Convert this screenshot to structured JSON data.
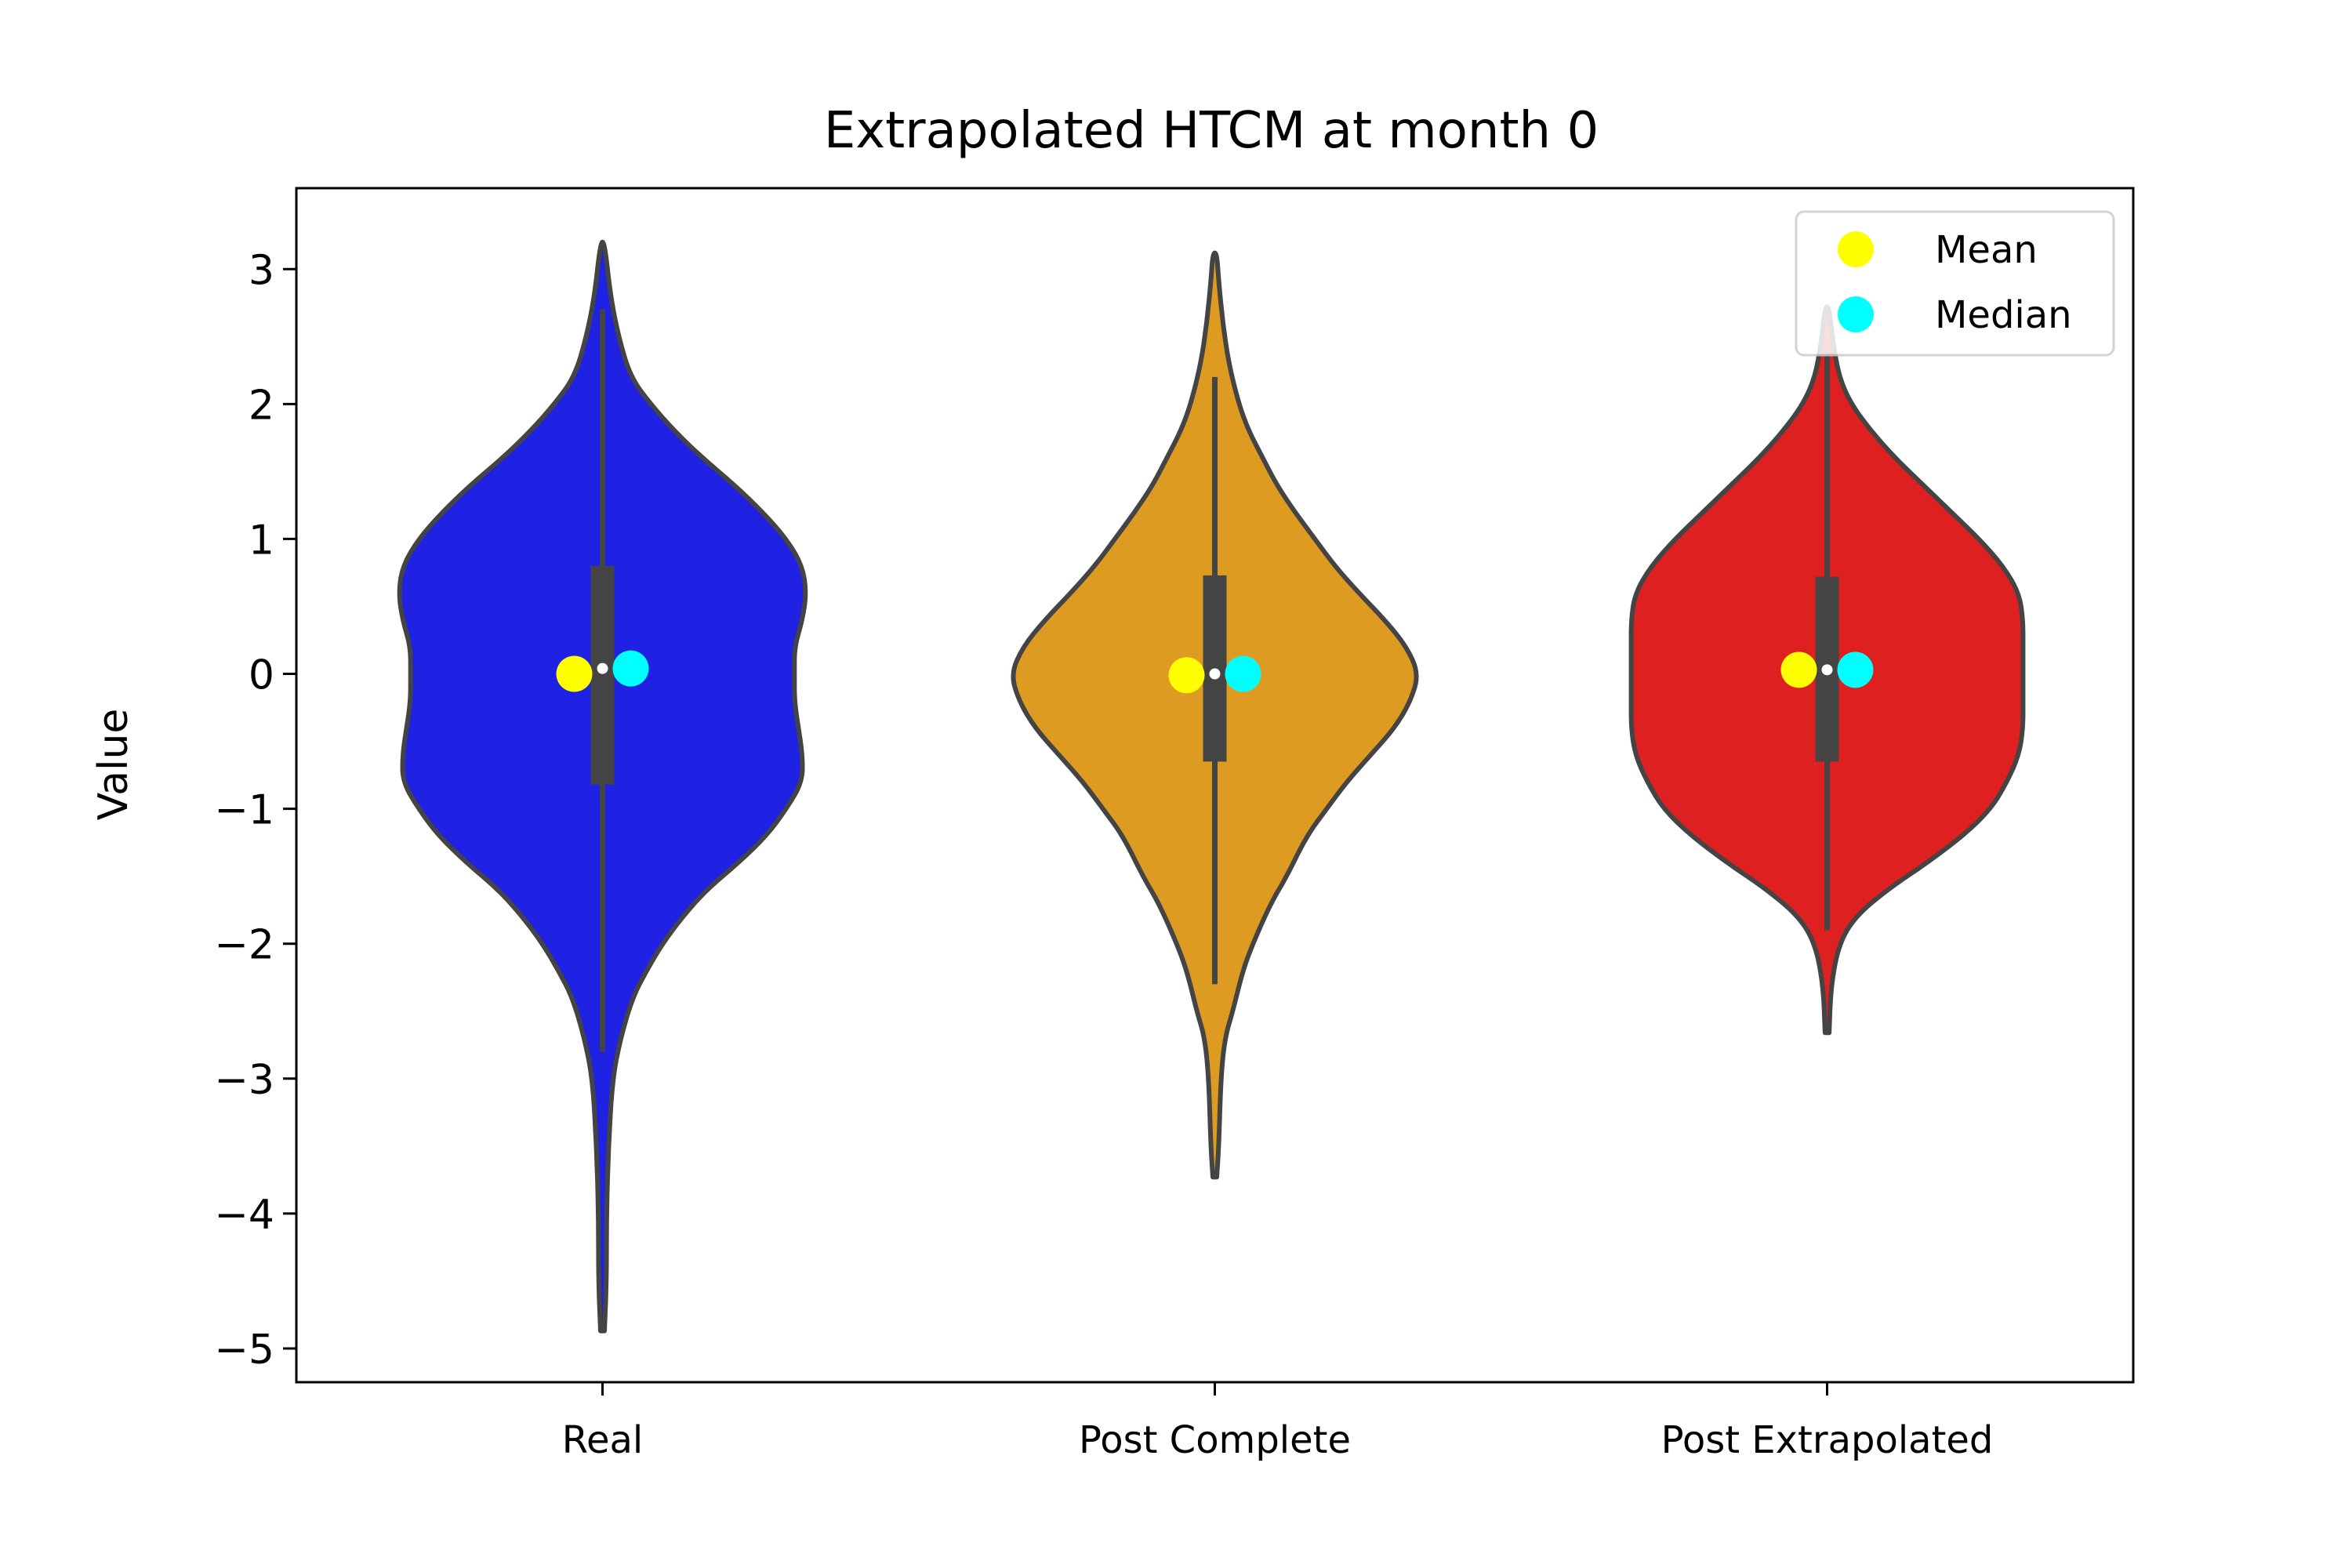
{
  "chart_data": {
    "type": "violin",
    "title": "Extrapolated HTCM at month 0",
    "xlabel": "",
    "ylabel": "Value",
    "ylim": [
      -5.25,
      3.6
    ],
    "y_ticks": [
      3,
      2,
      1,
      0,
      -1,
      -2,
      -3,
      -4,
      -5
    ],
    "y_tick_labels": [
      "3",
      "2",
      "1",
      "0",
      "−1",
      "−2",
      "−3",
      "−4",
      "−5"
    ],
    "grid": false,
    "legend_position": "upper right",
    "legend": [
      {
        "label": "Mean",
        "color": "#ffff00"
      },
      {
        "label": "Median",
        "color": "#00ffff"
      }
    ],
    "categories": [
      "Real",
      "Post Complete",
      "Post Extrapolated"
    ],
    "series": [
      {
        "name": "Real",
        "color": "#1f22e3",
        "min": -4.87,
        "max": 3.2,
        "q1": -0.82,
        "q3": 0.8,
        "whisker_low": -2.8,
        "whisker_high": 2.7,
        "median": 0.04,
        "mean": 0.0,
        "density_y": [
          -4.87,
          -4.5,
          -4.0,
          -3.5,
          -3.0,
          -2.7,
          -2.4,
          -2.2,
          -2.0,
          -1.8,
          -1.6,
          -1.4,
          -1.2,
          -1.0,
          -0.8,
          -0.6,
          -0.4,
          -0.2,
          0.0,
          0.2,
          0.4,
          0.6,
          0.8,
          1.0,
          1.2,
          1.4,
          1.6,
          1.8,
          2.0,
          2.2,
          2.5,
          2.8,
          3.2
        ],
        "density_w": [
          0.01,
          0.02,
          0.02,
          0.03,
          0.05,
          0.09,
          0.15,
          0.22,
          0.3,
          0.4,
          0.52,
          0.68,
          0.82,
          0.92,
          1.0,
          1.0,
          0.98,
          0.96,
          0.96,
          0.96,
          1.0,
          1.02,
          1.0,
          0.92,
          0.8,
          0.66,
          0.5,
          0.36,
          0.24,
          0.14,
          0.08,
          0.04,
          0.01
        ]
      },
      {
        "name": "Post Complete",
        "color": "#de9b22",
        "min": -3.73,
        "max": 3.12,
        "q1": -0.65,
        "q3": 0.73,
        "whisker_low": -2.3,
        "whisker_high": 2.2,
        "median": 0.0,
        "mean": -0.01,
        "density_y": [
          -3.73,
          -3.5,
          -3.0,
          -2.7,
          -2.5,
          -2.2,
          -2.0,
          -1.7,
          -1.5,
          -1.2,
          -1.0,
          -0.8,
          -0.6,
          -0.4,
          -0.2,
          0.0,
          0.2,
          0.4,
          0.6,
          0.8,
          1.0,
          1.2,
          1.4,
          1.6,
          1.8,
          2.0,
          2.3,
          2.6,
          2.9,
          3.12
        ],
        "density_w": [
          0.01,
          0.02,
          0.03,
          0.05,
          0.09,
          0.14,
          0.19,
          0.28,
          0.36,
          0.46,
          0.56,
          0.66,
          0.78,
          0.9,
          0.98,
          1.02,
          0.96,
          0.85,
          0.72,
          0.6,
          0.5,
          0.4,
          0.31,
          0.24,
          0.17,
          0.12,
          0.07,
          0.04,
          0.02,
          0.01
        ]
      },
      {
        "name": "Post Extrapolated",
        "color": "#de2020",
        "min": -2.66,
        "max": 2.72,
        "q1": -0.65,
        "q3": 0.72,
        "whisker_low": -1.9,
        "whisker_high": 2.4,
        "median": 0.03,
        "mean": 0.03,
        "density_y": [
          -2.66,
          -2.3,
          -2.0,
          -1.8,
          -1.6,
          -1.4,
          -1.2,
          -1.0,
          -0.8,
          -0.6,
          -0.4,
          -0.2,
          0.0,
          0.2,
          0.4,
          0.6,
          0.8,
          1.0,
          1.2,
          1.4,
          1.6,
          1.8,
          2.0,
          2.2,
          2.45,
          2.72
        ],
        "density_w": [
          0.01,
          0.02,
          0.06,
          0.14,
          0.3,
          0.5,
          0.68,
          0.82,
          0.9,
          0.96,
          0.98,
          0.98,
          0.98,
          0.98,
          0.98,
          0.96,
          0.88,
          0.76,
          0.62,
          0.48,
          0.34,
          0.22,
          0.12,
          0.06,
          0.03,
          0.01
        ]
      }
    ]
  }
}
